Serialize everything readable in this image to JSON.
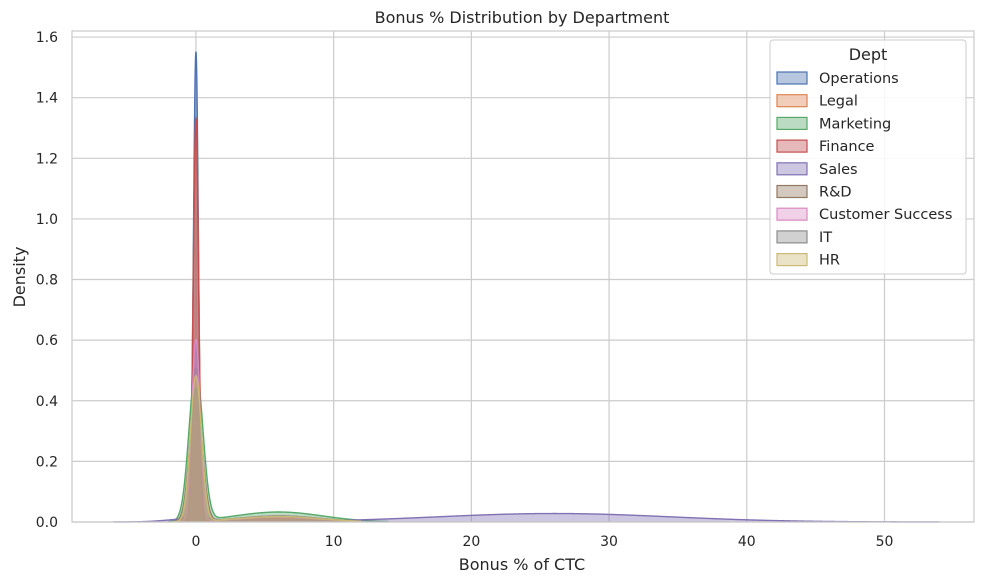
{
  "chart_data": {
    "type": "area",
    "title": "Bonus % Distribution by Department",
    "xlabel": "Bonus % of CTC",
    "ylabel": "Density",
    "xlim": [
      -9,
      56.5
    ],
    "ylim": [
      0,
      1.62
    ],
    "xticks": [
      0,
      10,
      20,
      30,
      40,
      50
    ],
    "xtick_labels": [
      "0",
      "10",
      "20",
      "30",
      "40",
      "50"
    ],
    "yticks": [
      0.0,
      0.2,
      0.4,
      0.6,
      0.8,
      1.0,
      1.2,
      1.4,
      1.6
    ],
    "ytick_labels": [
      "0.0",
      "0.2",
      "0.4",
      "0.6",
      "0.8",
      "1.0",
      "1.2",
      "1.4",
      "1.6"
    ],
    "grid": true,
    "legend": {
      "title": "Dept",
      "placement": "top-right"
    },
    "series": [
      {
        "name": "Operations",
        "color": "#4c72b0",
        "peak": 1.55,
        "width": 0.18,
        "x_min": -1.3,
        "x_max": 12,
        "bumps": [
          {
            "mu": 6,
            "sigma": 3,
            "h": 0.012
          }
        ]
      },
      {
        "name": "Legal",
        "color": "#dd8452",
        "peak": 1.3,
        "width": 0.2,
        "x_min": -1.4,
        "x_max": 12,
        "bumps": [
          {
            "mu": 6,
            "sigma": 3,
            "h": 0.02
          }
        ]
      },
      {
        "name": "Marketing",
        "color": "#55a868",
        "peak": 0.5,
        "width": 0.5,
        "x_min": -2,
        "x_max": 14,
        "bumps": [
          {
            "mu": 6,
            "sigma": 3.2,
            "h": 0.033
          }
        ]
      },
      {
        "name": "Finance",
        "color": "#c44e52",
        "peak": 1.33,
        "width": 0.19,
        "x_min": -1.4,
        "x_max": 12,
        "bumps": [
          {
            "mu": 6,
            "sigma": 3,
            "h": 0.012
          }
        ]
      },
      {
        "name": "Sales",
        "color": "#8172b3",
        "peak": 0.58,
        "width": 0.28,
        "x_min": -6,
        "x_max": 54,
        "bumps": [
          {
            "mu": 26,
            "sigma": 8.5,
            "h": 0.028
          },
          {
            "mu": 0,
            "sigma": 1.8,
            "h": 0.012
          }
        ]
      },
      {
        "name": "R&D",
        "color": "#937860",
        "peak": 0.42,
        "width": 0.45,
        "x_min": -1.8,
        "x_max": 12,
        "bumps": [
          {
            "mu": 6,
            "sigma": 3,
            "h": 0.018
          }
        ]
      },
      {
        "name": "Customer Success",
        "color": "#da8bc3",
        "peak": 0.6,
        "width": 0.3,
        "x_min": -1.5,
        "x_max": 12,
        "bumps": [
          {
            "mu": 6,
            "sigma": 3,
            "h": 0.015
          }
        ]
      },
      {
        "name": "IT",
        "color": "#8c8c8c",
        "peak": 0.44,
        "width": 0.42,
        "x_min": -1.8,
        "x_max": 12,
        "bumps": [
          {
            "mu": 6,
            "sigma": 3,
            "h": 0.02
          }
        ]
      },
      {
        "name": "HR",
        "color": "#ccb974",
        "peak": 0.48,
        "width": 0.4,
        "x_min": -1.8,
        "x_max": 12,
        "bumps": [
          {
            "mu": 6,
            "sigma": 3,
            "h": 0.018
          }
        ]
      }
    ]
  }
}
